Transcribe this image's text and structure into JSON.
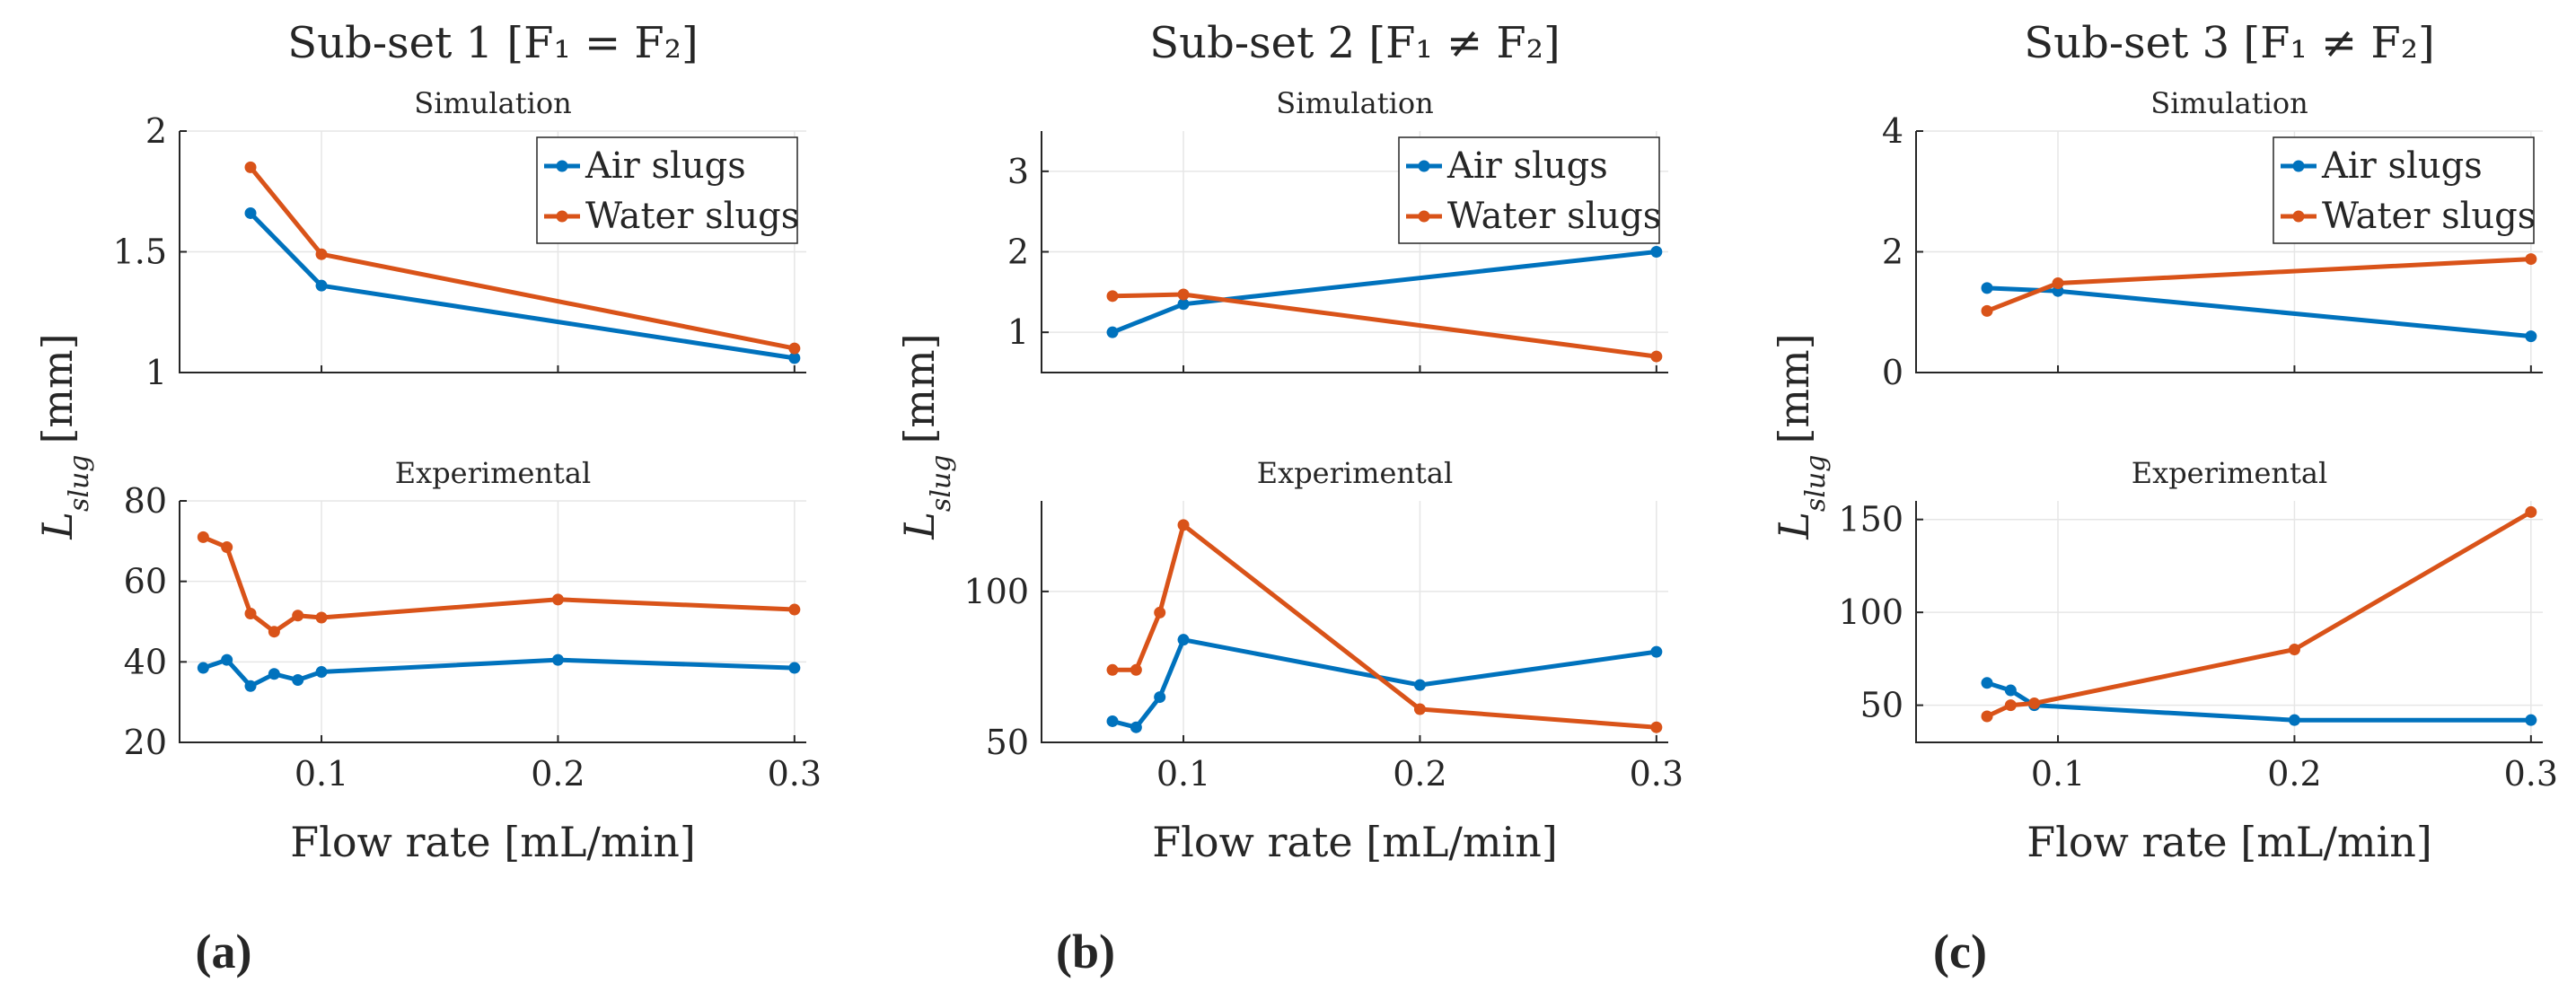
{
  "colors": {
    "air": "#0072BD",
    "water": "#D95319"
  },
  "legend": {
    "air": "Air slugs",
    "water": "Water slugs"
  },
  "xlabel": "Flow rate [mL/min]",
  "ylabel": "L_slug [mm]",
  "ylabel_main": "L",
  "ylabel_sub": "slug",
  "ylabel_unit": "[mm]",
  "chart_data": [
    {
      "type": "line",
      "panel_label": "(a)",
      "title": "Sub-set 1 [F₁ = F₂]",
      "subplots": [
        {
          "subtitle": "Simulation",
          "xlim": [
            0.04,
            0.305
          ],
          "ylim": [
            1,
            2
          ],
          "xticks": [
            0.1,
            0.2,
            0.3
          ],
          "xtick_labels": [
            "",
            "",
            ""
          ],
          "yticks": [
            1,
            1.5,
            2
          ],
          "ytick_labels": [
            "1",
            "1.5",
            "2"
          ],
          "legend": true,
          "series": [
            {
              "key": "air",
              "name": "Air slugs",
              "x": [
                0.07,
                0.1,
                0.3
              ],
              "y": [
                1.66,
                1.36,
                1.06
              ]
            },
            {
              "key": "water",
              "name": "Water slugs",
              "x": [
                0.07,
                0.1,
                0.3
              ],
              "y": [
                1.85,
                1.49,
                1.1
              ]
            }
          ]
        },
        {
          "subtitle": "Experimental",
          "xlim": [
            0.04,
            0.305
          ],
          "ylim": [
            20,
            80
          ],
          "xticks": [
            0.1,
            0.2,
            0.3
          ],
          "xtick_labels": [
            "0.1",
            "0.2",
            "0.3"
          ],
          "yticks": [
            20,
            40,
            60,
            80
          ],
          "ytick_labels": [
            "20",
            "40",
            "60",
            "80"
          ],
          "legend": false,
          "series": [
            {
              "key": "air",
              "name": "Air slugs",
              "x": [
                0.05,
                0.06,
                0.07,
                0.08,
                0.09,
                0.1,
                0.2,
                0.3
              ],
              "y": [
                38.5,
                40.5,
                34,
                37,
                35.5,
                37.5,
                40.5,
                38.5
              ]
            },
            {
              "key": "water",
              "name": "Water slugs",
              "x": [
                0.05,
                0.06,
                0.07,
                0.08,
                0.09,
                0.1,
                0.2,
                0.3
              ],
              "y": [
                71,
                68.5,
                52,
                47.5,
                51.5,
                51,
                55.5,
                53
              ]
            }
          ]
        }
      ]
    },
    {
      "type": "line",
      "panel_label": "(b)",
      "title": "Sub-set 2 [F₁ ≠ F₂]",
      "subplots": [
        {
          "subtitle": "Simulation",
          "xlim": [
            0.04,
            0.305
          ],
          "ylim": [
            0.5,
            3.5
          ],
          "xticks": [
            0.1,
            0.2,
            0.3
          ],
          "xtick_labels": [
            "",
            "",
            ""
          ],
          "yticks": [
            1,
            2,
            3
          ],
          "ytick_labels": [
            "1",
            "2",
            "3"
          ],
          "legend": true,
          "series": [
            {
              "key": "air",
              "name": "Air slugs",
              "x": [
                0.07,
                0.1,
                0.3
              ],
              "y": [
                1.0,
                1.35,
                2.0
              ]
            },
            {
              "key": "water",
              "name": "Water slugs",
              "x": [
                0.07,
                0.1,
                0.3
              ],
              "y": [
                1.45,
                1.47,
                0.7
              ]
            }
          ]
        },
        {
          "subtitle": "Experimental",
          "xlim": [
            0.04,
            0.305
          ],
          "ylim": [
            50,
            130
          ],
          "xticks": [
            0.1,
            0.2,
            0.3
          ],
          "xtick_labels": [
            "0.1",
            "0.2",
            "0.3"
          ],
          "yticks": [
            50,
            100
          ],
          "ytick_labels": [
            "50",
            "100"
          ],
          "legend": false,
          "series": [
            {
              "key": "air",
              "name": "Air slugs",
              "x": [
                0.07,
                0.08,
                0.09,
                0.1,
                0.2,
                0.3
              ],
              "y": [
                57,
                55,
                65,
                84,
                69,
                80
              ]
            },
            {
              "key": "water",
              "name": "Water slugs",
              "x": [
                0.07,
                0.08,
                0.09,
                0.1,
                0.2,
                0.3
              ],
              "y": [
                74,
                74,
                93,
                122,
                61,
                55
              ]
            }
          ]
        }
      ]
    },
    {
      "type": "line",
      "panel_label": "(c)",
      "title": "Sub-set 3 [F₁ ≠ F₂]",
      "subplots": [
        {
          "subtitle": "Simulation",
          "xlim": [
            0.04,
            0.305
          ],
          "ylim": [
            0,
            4
          ],
          "xticks": [
            0.1,
            0.2,
            0.3
          ],
          "xtick_labels": [
            "",
            "",
            ""
          ],
          "yticks": [
            0,
            2,
            4
          ],
          "ytick_labels": [
            "0",
            "2",
            "4"
          ],
          "legend": true,
          "series": [
            {
              "key": "air",
              "name": "Air slugs",
              "x": [
                0.07,
                0.1,
                0.3
              ],
              "y": [
                1.4,
                1.35,
                0.6
              ]
            },
            {
              "key": "water",
              "name": "Water slugs",
              "x": [
                0.07,
                0.1,
                0.3
              ],
              "y": [
                1.02,
                1.48,
                1.88
              ]
            }
          ]
        },
        {
          "subtitle": "Experimental",
          "xlim": [
            0.04,
            0.305
          ],
          "ylim": [
            30,
            160
          ],
          "xticks": [
            0.1,
            0.2,
            0.3
          ],
          "xtick_labels": [
            "0.1",
            "0.2",
            "0.3"
          ],
          "yticks": [
            50,
            100,
            150
          ],
          "ytick_labels": [
            "50",
            "100",
            "150"
          ],
          "legend": false,
          "series": [
            {
              "key": "air",
              "name": "Air slugs",
              "x": [
                0.07,
                0.08,
                0.09,
                0.2,
                0.3
              ],
              "y": [
                62,
                58,
                50,
                42,
                42
              ]
            },
            {
              "key": "water",
              "name": "Water slugs",
              "x": [
                0.07,
                0.08,
                0.09,
                0.2,
                0.3
              ],
              "y": [
                44,
                50,
                51,
                80,
                154
              ]
            }
          ]
        }
      ]
    }
  ]
}
